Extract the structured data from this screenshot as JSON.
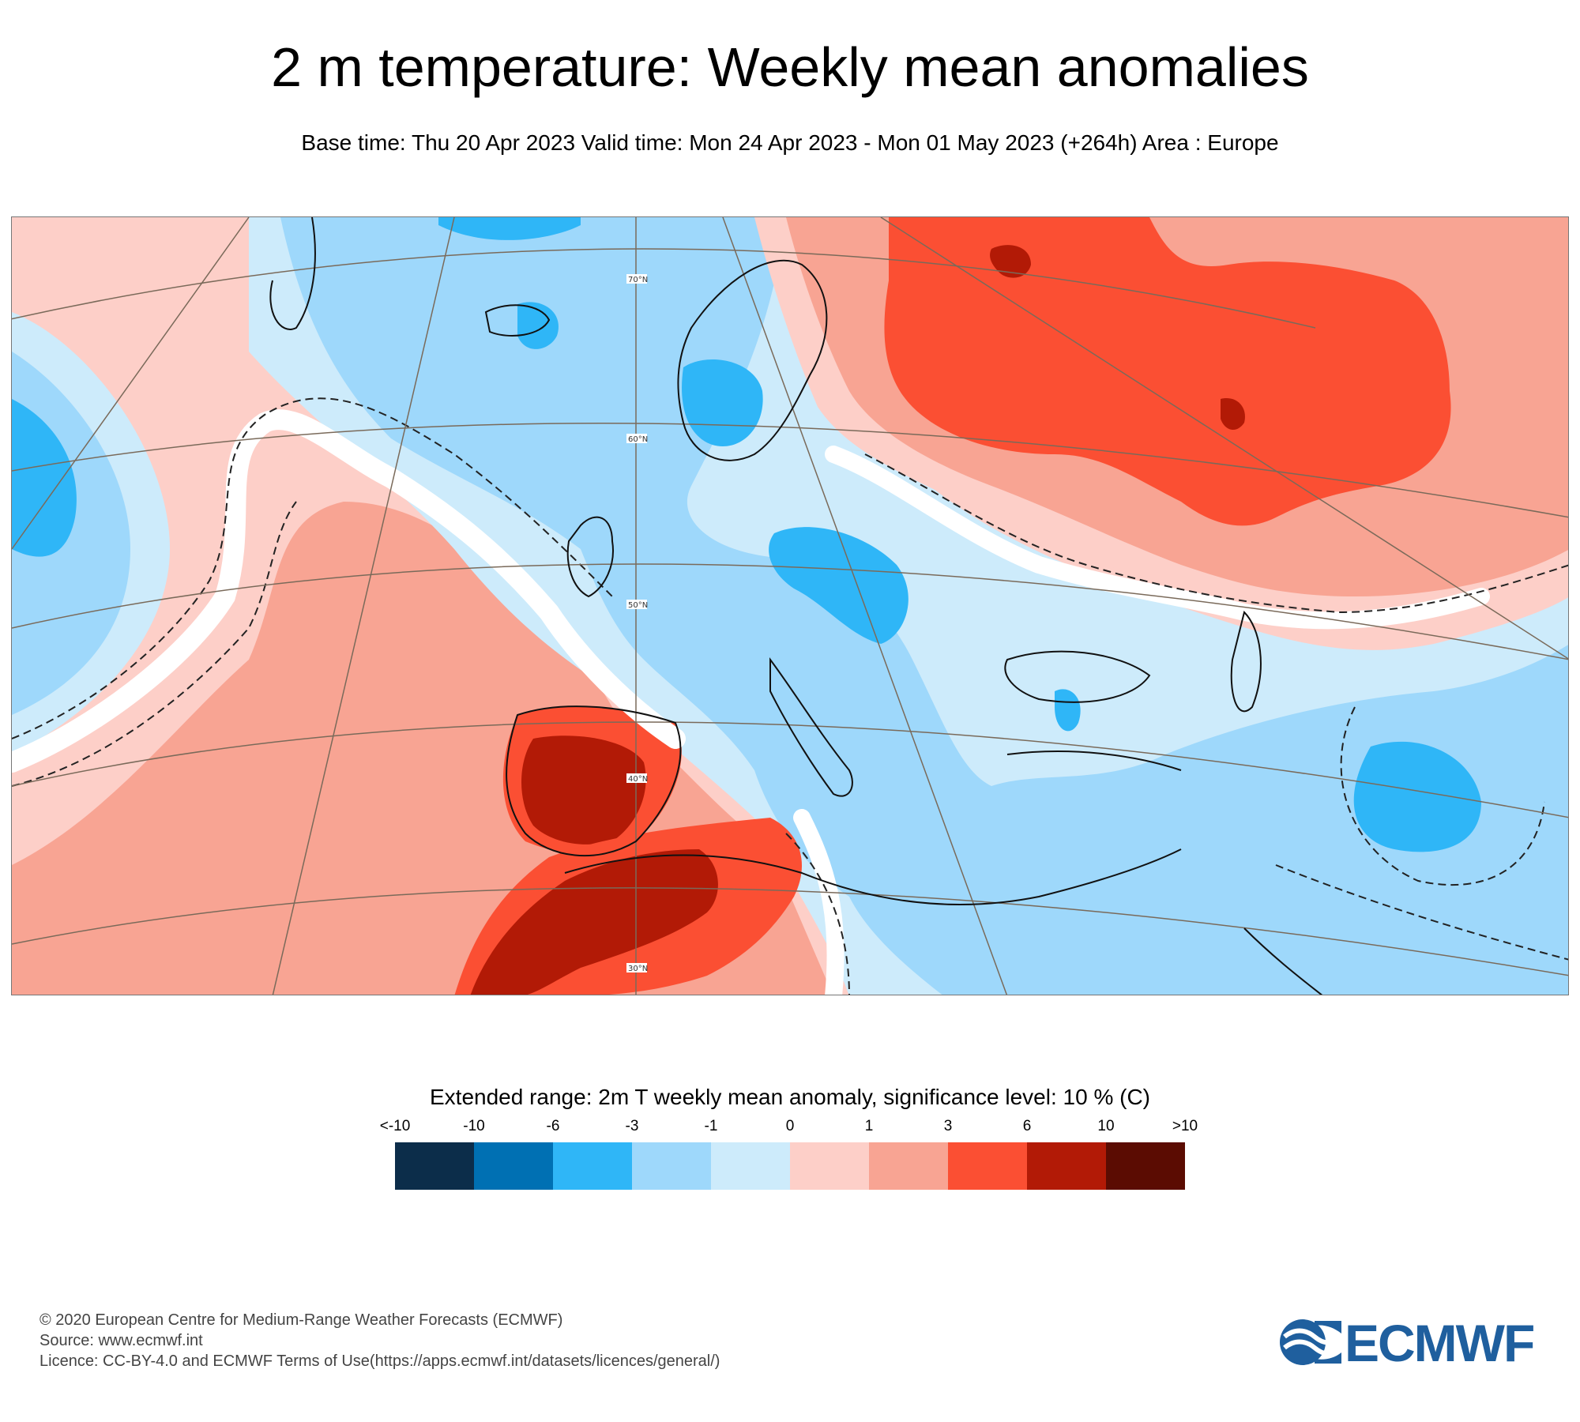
{
  "title": "2 m temperature: Weekly mean anomalies",
  "subtitle": "Base time: Thu 20 Apr 2023 Valid time: Mon 24 Apr 2023 - Mon 01 May 2023 (+264h) Area : Europe",
  "map": {
    "area": "Europe",
    "latitude_labels": [
      "70°N",
      "60°N",
      "50°N",
      "40°N",
      "30°N"
    ]
  },
  "legend": {
    "title": "Extended range: 2m T weekly mean anomaly, significance level: 10 % (C)",
    "labels": [
      "<-10",
      "-10",
      "-6",
      "-3",
      "-1",
      "0",
      "1",
      "3",
      "6",
      "10",
      ">10"
    ],
    "colors": [
      "#0c2d4a",
      "#0070b3",
      "#2fb6f7",
      "#9ed8fb",
      "#cdebfb",
      "#fdcfc8",
      "#f8a493",
      "#fb4f33",
      "#b21a06",
      "#5b0c02"
    ]
  },
  "footer": {
    "copyright": "© 2020 European Centre for Medium-Range Weather Forecasts (ECMWF)",
    "source": "Source: www.ecmwf.int",
    "licence": "Licence: CC-BY-4.0 and ECMWF Terms of Use(https://apps.ecmwf.int/datasets/licences/general/)"
  },
  "logo": {
    "text": "ECMWF",
    "color": "#1f5f9e"
  }
}
